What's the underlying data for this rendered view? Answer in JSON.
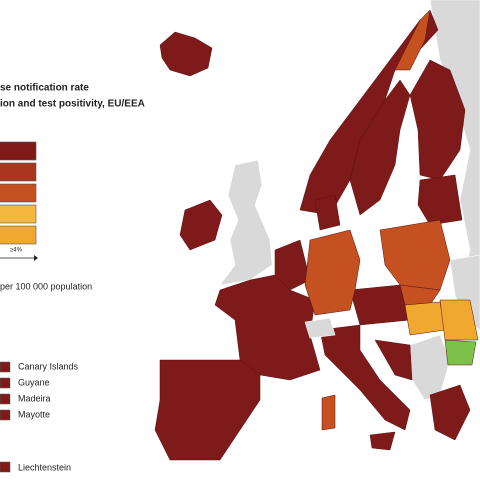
{
  "header": {
    "title_line1": "se notification rate",
    "title_line2": "ion and test positivity, EU/EEA"
  },
  "legend": {
    "threshold_label": "≥4%",
    "rate_caption": "per 100 000 population"
  },
  "regions": [
    "Canary Islands",
    "Guyane",
    "Madeira",
    "Mayotte"
  ],
  "extra_region": "Liechtenstein"
}
